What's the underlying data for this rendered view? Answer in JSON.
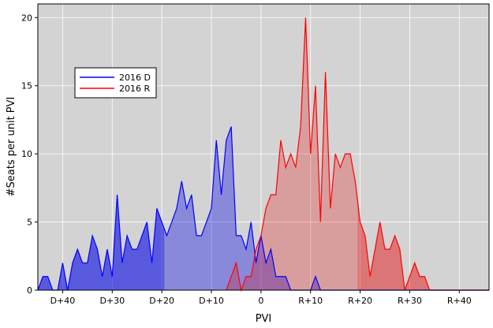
{
  "chart_data": {
    "type": "area",
    "xlabel": "PVI",
    "ylabel": "#Seats per unit PVI",
    "xlim": [
      -45,
      46
    ],
    "ylim": [
      0,
      21
    ],
    "x_ticks": [
      {
        "value": -40,
        "label": "D+40"
      },
      {
        "value": -30,
        "label": "D+30"
      },
      {
        "value": -20,
        "label": "D+20"
      },
      {
        "value": -10,
        "label": "D+10"
      },
      {
        "value": 0,
        "label": "0"
      },
      {
        "value": 10,
        "label": "R+10"
      },
      {
        "value": 20,
        "label": "R+20"
      },
      {
        "value": 30,
        "label": "R+30"
      },
      {
        "value": 40,
        "label": "R+40"
      }
    ],
    "y_ticks": [
      0,
      5,
      10,
      15,
      20
    ],
    "grid": true,
    "legend_position": "upper-left",
    "series": [
      {
        "name": "2016 D",
        "color": "#0000ff",
        "fill": "rgba(0,0,230,0.35)",
        "x": [
          -45,
          -44,
          -43,
          -42,
          -41,
          -40,
          -39,
          -38,
          -37,
          -36,
          -35,
          -34,
          -33,
          -32,
          -31,
          -30,
          -29,
          -28,
          -27,
          -26,
          -25,
          -24,
          -23,
          -22,
          -21,
          -20,
          -19,
          -18,
          -17,
          -16,
          -15,
          -14,
          -13,
          -12,
          -11,
          -10,
          -9,
          -8,
          -7,
          -6,
          -5,
          -4,
          -3,
          -2,
          -1,
          0,
          1,
          2,
          3,
          4,
          5,
          6,
          7,
          8,
          9,
          10,
          11,
          12,
          13
        ],
        "y": [
          0,
          1,
          1,
          0,
          0,
          2,
          0,
          2,
          3,
          2,
          2,
          4,
          3,
          1,
          3,
          1,
          7,
          2,
          4,
          3,
          3,
          4,
          5,
          2,
          6,
          5,
          4,
          5,
          6,
          8,
          6,
          7,
          4,
          4,
          5,
          6,
          11,
          7,
          11,
          12,
          4,
          4,
          3,
          5,
          2,
          4,
          2,
          3,
          1,
          1,
          1,
          0,
          0,
          0,
          0,
          0,
          1,
          0,
          0
        ]
      },
      {
        "name": "2016 R",
        "color": "#ff0000",
        "fill": "rgba(230,0,0,0.25)",
        "x": [
          -7,
          -6,
          -5,
          -4,
          -3,
          -2,
          -1,
          0,
          1,
          2,
          3,
          4,
          5,
          6,
          7,
          8,
          9,
          10,
          11,
          12,
          13,
          14,
          15,
          16,
          17,
          18,
          19,
          20,
          21,
          22,
          23,
          24,
          25,
          26,
          27,
          28,
          29,
          30,
          31,
          32,
          33,
          34
        ],
        "y": [
          0,
          1,
          2,
          0,
          1,
          1,
          3,
          4,
          6,
          7,
          7,
          11,
          9,
          10,
          9,
          12,
          20,
          10,
          15,
          5,
          16,
          6,
          10,
          9,
          10,
          10,
          8,
          5,
          4,
          1,
          3,
          5,
          3,
          3,
          4,
          3,
          0,
          1,
          2,
          1,
          1,
          0
        ]
      }
    ],
    "flat_lines": [
      {
        "color": "#0000ff",
        "x": [
          13,
          46
        ]
      },
      {
        "color": "#ff0000",
        "x": [
          34,
          46
        ]
      }
    ],
    "shade_boundaries": [
      {
        "series": 0,
        "x": -19.5
      },
      {
        "series": 1,
        "x": 19.5
      }
    ]
  }
}
